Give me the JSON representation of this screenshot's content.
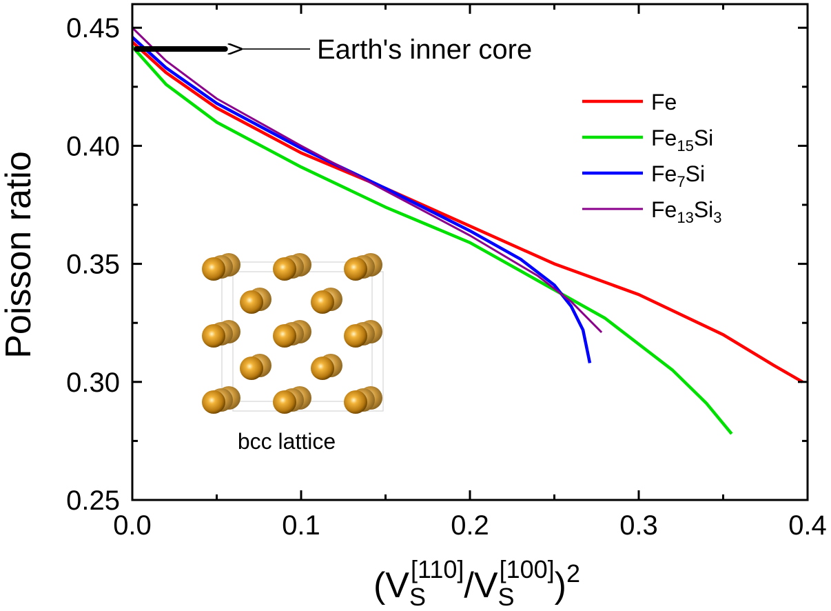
{
  "chart_data": {
    "type": "line",
    "xlabel": {
      "text": "(V",
      "sub1": "S",
      "sup1": "[110]",
      "slash": "/V",
      "sub2": "S",
      "sup2": "[100]",
      "close": ")",
      "power": "2"
    },
    "ylabel": "Poisson ratio",
    "xlim": [
      0.0,
      0.4
    ],
    "ylim": [
      0.25,
      0.46
    ],
    "x_ticks": [
      {
        "value": 0.0,
        "label": "0.0"
      },
      {
        "value": 0.1,
        "label": "0.1"
      },
      {
        "value": 0.2,
        "label": "0.2"
      },
      {
        "value": 0.3,
        "label": "0.3"
      },
      {
        "value": 0.4,
        "label": "0.4"
      }
    ],
    "y_ticks": [
      {
        "value": 0.25,
        "label": "0.25"
      },
      {
        "value": 0.3,
        "label": "0.30"
      },
      {
        "value": 0.35,
        "label": "0.35"
      },
      {
        "value": 0.4,
        "label": "0.40"
      },
      {
        "value": 0.45,
        "label": "0.45"
      }
    ],
    "grid": false,
    "legend_position": "top-right",
    "series": [
      {
        "name": "Fe",
        "legend_base": "Fe",
        "legend_parts": [],
        "color": "#ff0000",
        "points": [
          [
            0.0,
            0.444
          ],
          [
            0.02,
            0.431
          ],
          [
            0.05,
            0.416
          ],
          [
            0.1,
            0.397
          ],
          [
            0.15,
            0.382
          ],
          [
            0.2,
            0.366
          ],
          [
            0.25,
            0.35
          ],
          [
            0.3,
            0.337
          ],
          [
            0.35,
            0.32
          ],
          [
            0.38,
            0.307
          ],
          [
            0.397,
            0.3
          ]
        ]
      },
      {
        "name": "Fe15Si",
        "legend_base": "Fe",
        "legend_parts": [
          {
            "t": "15",
            "sub": true
          },
          {
            "t": "Si",
            "sub": false
          }
        ],
        "color": "#00e000",
        "points": [
          [
            0.0,
            0.442
          ],
          [
            0.02,
            0.426
          ],
          [
            0.05,
            0.41
          ],
          [
            0.1,
            0.391
          ],
          [
            0.15,
            0.374
          ],
          [
            0.2,
            0.359
          ],
          [
            0.24,
            0.343
          ],
          [
            0.28,
            0.327
          ],
          [
            0.32,
            0.305
          ],
          [
            0.34,
            0.291
          ],
          [
            0.355,
            0.278
          ]
        ]
      },
      {
        "name": "Fe7Si",
        "legend_base": "Fe",
        "legend_parts": [
          {
            "t": "7",
            "sub": true
          },
          {
            "t": "Si",
            "sub": false
          }
        ],
        "color": "#0000ff",
        "points": [
          [
            0.0,
            0.446
          ],
          [
            0.02,
            0.433
          ],
          [
            0.05,
            0.418
          ],
          [
            0.1,
            0.399
          ],
          [
            0.15,
            0.382
          ],
          [
            0.2,
            0.364
          ],
          [
            0.23,
            0.352
          ],
          [
            0.25,
            0.341
          ],
          [
            0.26,
            0.332
          ],
          [
            0.267,
            0.322
          ],
          [
            0.271,
            0.308
          ]
        ]
      },
      {
        "name": "Fe13Si3",
        "legend_base": "Fe",
        "legend_parts": [
          {
            "t": "13",
            "sub": true
          },
          {
            "t": "Si",
            "sub": false
          },
          {
            "t": "3",
            "sub": true
          }
        ],
        "color": "#8b008b",
        "points": [
          [
            0.0,
            0.45
          ],
          [
            0.02,
            0.436
          ],
          [
            0.05,
            0.42
          ],
          [
            0.1,
            0.4
          ],
          [
            0.15,
            0.381
          ],
          [
            0.2,
            0.362
          ],
          [
            0.24,
            0.345
          ],
          [
            0.26,
            0.334
          ],
          [
            0.278,
            0.321
          ]
        ]
      }
    ],
    "annotations": [
      {
        "text": "Earth's inner core",
        "value": 0.441,
        "x_range": [
          0.0,
          0.055
        ]
      },
      {
        "text": "bcc lattice"
      }
    ]
  }
}
